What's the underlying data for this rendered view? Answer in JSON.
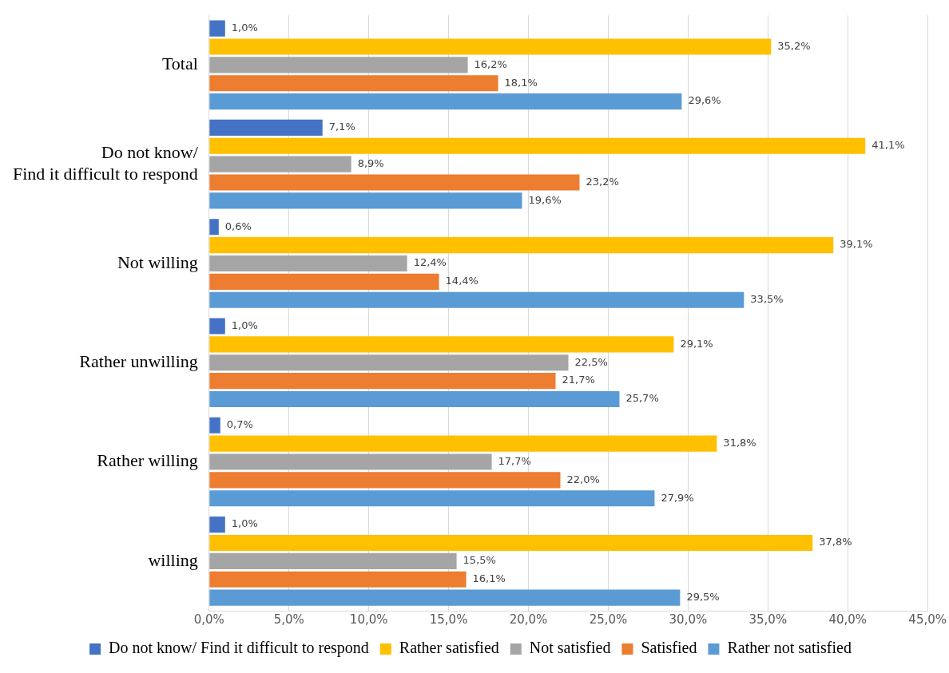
{
  "chart_data": {
    "type": "bar",
    "orientation": "horizontal",
    "categories": [
      "Total",
      "Do not know/ Find it difficult to respond",
      "Not willing",
      "Rather unwilling",
      "Rather willing",
      "willing"
    ],
    "series": [
      {
        "name": "Do not know/ Find it difficult to respond",
        "color": "#4472c4",
        "values": [
          1.0,
          7.1,
          0.6,
          1.0,
          0.7,
          1.0
        ],
        "value_labels": [
          "1,0%",
          "7,1%",
          "0,6%",
          "1,0%",
          "0,7%",
          "1,0%"
        ]
      },
      {
        "name": "Rather satisfied",
        "color": "#ffc000",
        "values": [
          35.2,
          41.1,
          39.1,
          29.1,
          31.8,
          37.8
        ],
        "value_labels": [
          "35,2%",
          "41,1%",
          "39,1%",
          "29,1%",
          "31,8%",
          "37,8%"
        ]
      },
      {
        "name": "Not satisfied",
        "color": "#a5a5a5",
        "values": [
          16.2,
          8.9,
          12.4,
          22.5,
          17.7,
          15.5
        ],
        "value_labels": [
          "16,2%",
          "8,9%",
          "12,4%",
          "22,5%",
          "17,7%",
          "15,5%"
        ]
      },
      {
        "name": "Satisfied",
        "color": "#ed7d31",
        "values": [
          18.1,
          23.2,
          14.4,
          21.7,
          22.0,
          16.1
        ],
        "value_labels": [
          "18,1%",
          "23,2%",
          "14,4%",
          "21,7%",
          "22,0%",
          "16,1%"
        ]
      },
      {
        "name": "Rather not satisfied",
        "color": "#5b9bd5",
        "values": [
          29.6,
          19.6,
          33.5,
          25.7,
          27.9,
          29.5
        ],
        "value_labels": [
          "29,6%",
          "19,6%",
          "33,5%",
          "25,7%",
          "27,9%",
          "29,5%"
        ]
      }
    ],
    "xlim": [
      0,
      45
    ],
    "xticks": [
      {
        "value": 0,
        "label": "0,0%"
      },
      {
        "value": 5,
        "label": "5,0%"
      },
      {
        "value": 10,
        "label": "10,0%"
      },
      {
        "value": 15,
        "label": "15,0%"
      },
      {
        "value": 20,
        "label": "20,0%"
      },
      {
        "value": 25,
        "label": "25,0%"
      },
      {
        "value": 30,
        "label": "30,0%"
      },
      {
        "value": 35,
        "label": "35,0%"
      },
      {
        "value": 40,
        "label": "40,0%"
      },
      {
        "value": 45,
        "label": "45,0%"
      }
    ],
    "grid": true,
    "legend": "bottom",
    "data_labels": true
  }
}
